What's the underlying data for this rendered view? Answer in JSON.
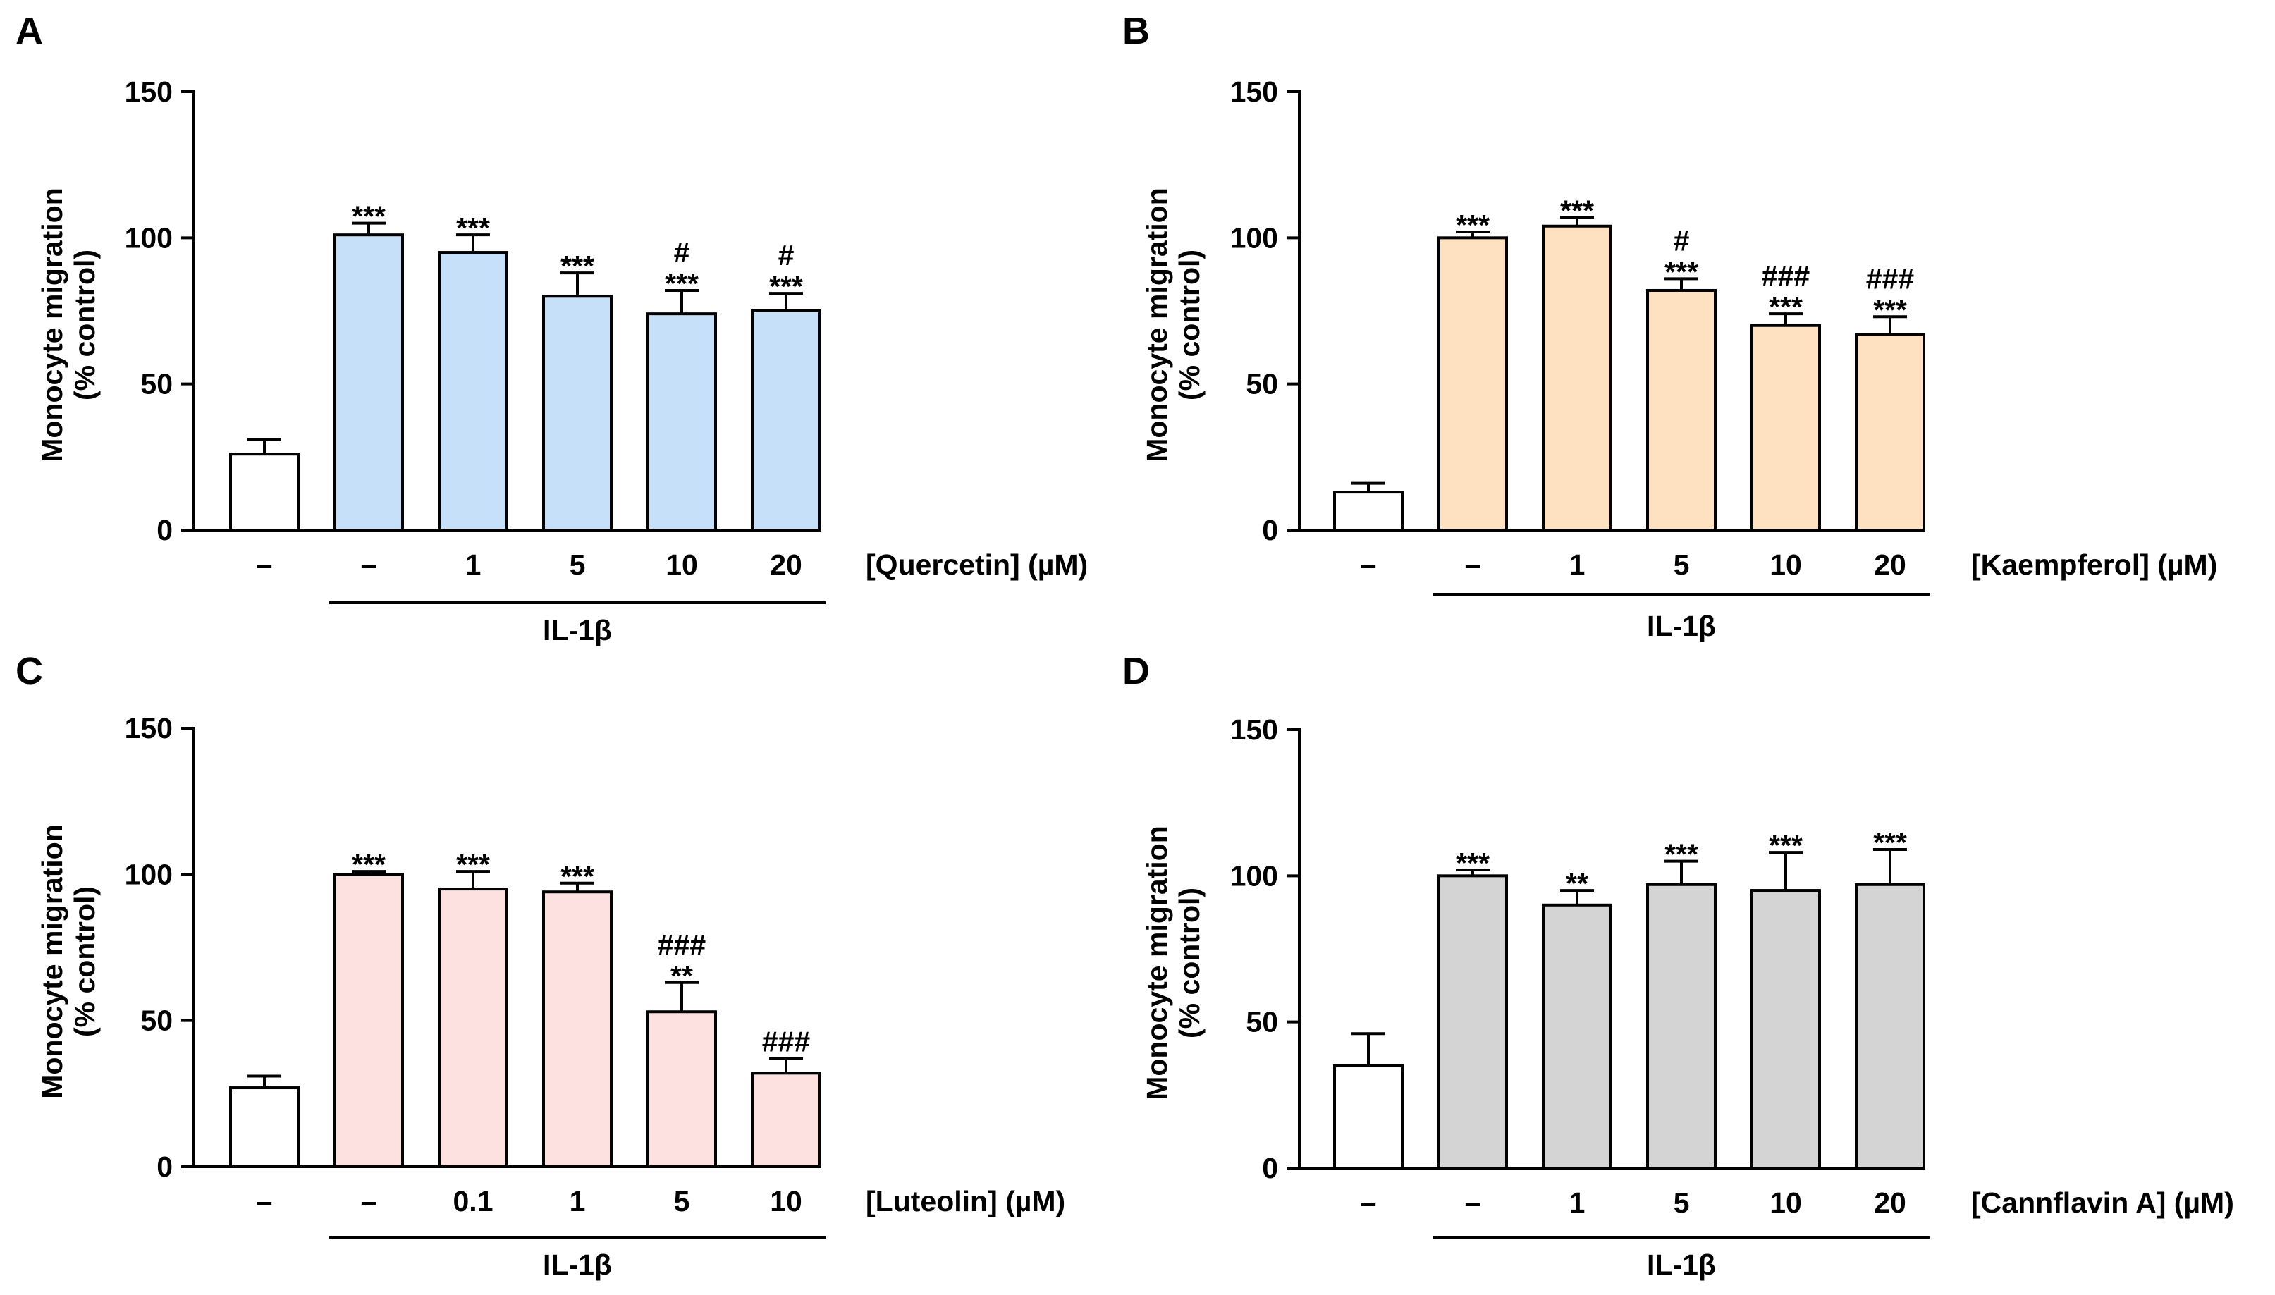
{
  "chart_data": [
    {
      "panel": "A",
      "type": "bar",
      "ylabel": [
        "Monocyte migration",
        "(% control)"
      ],
      "ylim": [
        0,
        150
      ],
      "yticks": [
        0,
        50,
        100,
        150
      ],
      "xlabel": "[Quercetin] (µM)",
      "group_label": "IL-1β",
      "color": "#c5e0f8",
      "categories": [
        "–",
        "–",
        "1",
        "5",
        "10",
        "20"
      ],
      "values": [
        26,
        101,
        95,
        80,
        74,
        75
      ],
      "errors": [
        5,
        4,
        6,
        8,
        8,
        6
      ],
      "significance": [
        [],
        [
          "***"
        ],
        [
          "***"
        ],
        [
          "***"
        ],
        [
          "#",
          "***"
        ],
        [
          "#",
          "***"
        ]
      ]
    },
    {
      "panel": "B",
      "type": "bar",
      "ylabel": [
        "Monocyte migration",
        "(% control)"
      ],
      "ylim": [
        0,
        150
      ],
      "yticks": [
        0,
        50,
        100,
        150
      ],
      "xlabel": "[Kaempferol] (µM)",
      "group_label": "IL-1β",
      "color": "#fde1c1",
      "categories": [
        "–",
        "–",
        "1",
        "5",
        "10",
        "20"
      ],
      "values": [
        13,
        100,
        104,
        82,
        70,
        67
      ],
      "errors": [
        3,
        2,
        3,
        4,
        4,
        6
      ],
      "significance": [
        [],
        [
          "***"
        ],
        [
          "***"
        ],
        [
          "#",
          "***"
        ],
        [
          "###",
          "***"
        ],
        [
          "###",
          "***"
        ]
      ]
    },
    {
      "panel": "C",
      "type": "bar",
      "ylabel": [
        "Monocyte migration",
        "(% control)"
      ],
      "ylim": [
        0,
        150
      ],
      "yticks": [
        0,
        50,
        100,
        150
      ],
      "xlabel": "[Luteolin] (µM)",
      "group_label": "IL-1β",
      "color": "#fde0e0",
      "categories": [
        "–",
        "–",
        "0.1",
        "1",
        "5",
        "10"
      ],
      "values": [
        27,
        100,
        95,
        94,
        53,
        32
      ],
      "errors": [
        4,
        1,
        6,
        3,
        10,
        5
      ],
      "significance": [
        [],
        [
          "***"
        ],
        [
          "***"
        ],
        [
          "***"
        ],
        [
          "###",
          "**"
        ],
        [
          "###"
        ]
      ]
    },
    {
      "panel": "D",
      "type": "bar",
      "ylabel": [
        "Monocyte migration",
        "(% control)"
      ],
      "ylim": [
        0,
        150
      ],
      "yticks": [
        0,
        50,
        100,
        150
      ],
      "xlabel": "[Cannflavin A] (µM)",
      "group_label": "IL-1β",
      "color": "#d4d4d4",
      "categories": [
        "–",
        "–",
        "1",
        "5",
        "10",
        "20"
      ],
      "values": [
        35,
        100,
        90,
        97,
        95,
        97
      ],
      "errors": [
        11,
        2,
        5,
        8,
        13,
        12
      ],
      "significance": [
        [],
        [
          "***"
        ],
        [
          "**"
        ],
        [
          "***"
        ],
        [
          "***"
        ],
        [
          "***"
        ]
      ]
    }
  ]
}
